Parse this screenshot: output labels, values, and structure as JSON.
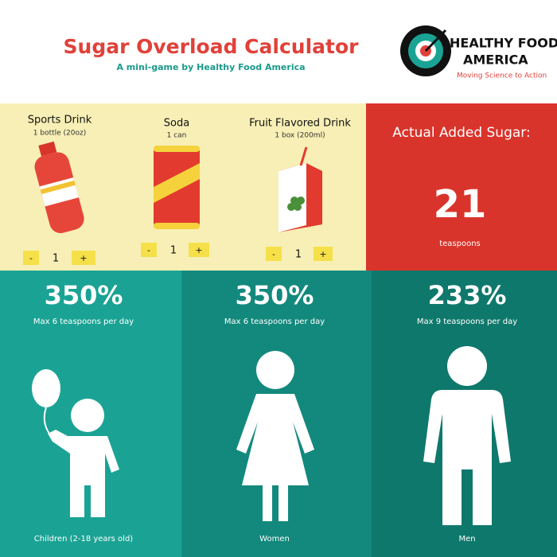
{
  "header": {
    "title": "Sugar Overload Calculator",
    "subtitle": "A mini-game by Healthy Food America",
    "logo": {
      "line1": "HEALTHY FOOD",
      "line2": "AMERICA",
      "tagline": "Moving Science to Action"
    }
  },
  "drinks": [
    {
      "name": "Sports Drink",
      "serving": "1 bottle (20oz)",
      "quantity": 1,
      "minus": "-",
      "plus": "+"
    },
    {
      "name": "Soda",
      "serving": "1 can",
      "quantity": 1,
      "minus": "-",
      "plus": "+"
    },
    {
      "name": "Fruit Flavored Drink",
      "serving": "1 box (200ml)",
      "quantity": 1,
      "minus": "-",
      "plus": "+"
    }
  ],
  "result": {
    "label": "Actual Added Sugar:",
    "value": 21,
    "unit": "teaspoons"
  },
  "groups": [
    {
      "percent": "350%",
      "limit": "Max 6 teaspoons per day",
      "label": "Children (2-18 years old)"
    },
    {
      "percent": "350%",
      "limit": "Max 6 teaspoons per day",
      "label": "Women"
    },
    {
      "percent": "233%",
      "limit": "Max 9 teaspoons per day",
      "label": "Men"
    }
  ]
}
